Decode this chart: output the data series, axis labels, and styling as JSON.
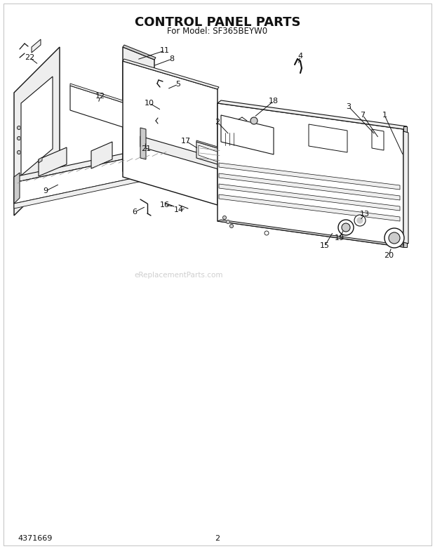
{
  "title": "CONTROL PANEL PARTS",
  "subtitle": "For Model: SF365BEYW0",
  "part_number": "4371669",
  "page_number": "2",
  "bg_color": "#ffffff",
  "line_color": "#111111",
  "title_fontsize": 13,
  "subtitle_fontsize": 8.5,
  "footer_fontsize": 8,
  "label_fontsize": 8,
  "watermark": "eReplacementParts.com",
  "watermark_color": "#bbbbbb"
}
